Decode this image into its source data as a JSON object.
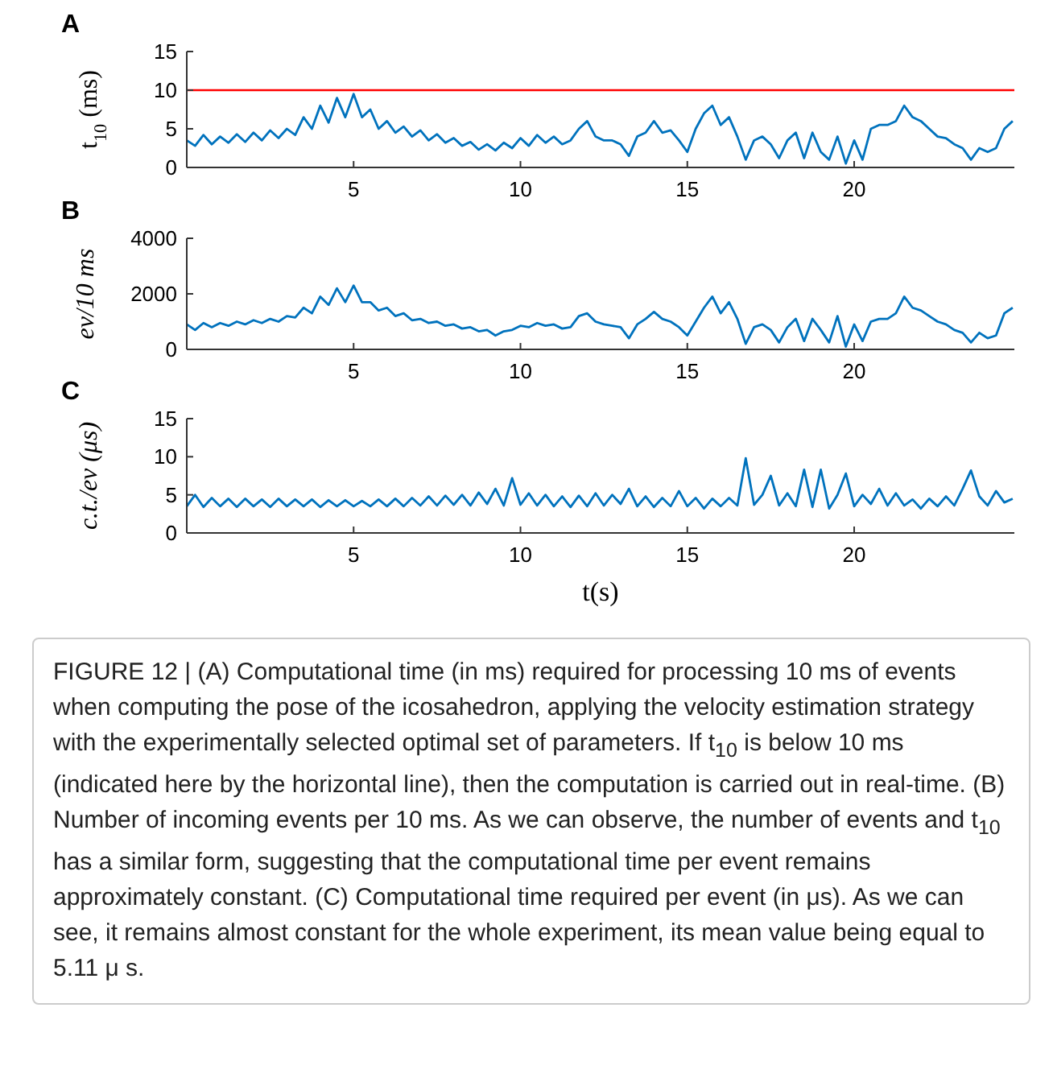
{
  "chart_data": [
    {
      "type": "line",
      "title": "A",
      "ylabel": "t$_{10}$ (ms)",
      "xlim": [
        0,
        24.8
      ],
      "xticks": [
        5,
        10,
        15,
        20
      ],
      "ylim": [
        0,
        15
      ],
      "yticks": [
        0,
        5,
        10,
        15
      ],
      "ref_lines": [
        {
          "axis": "y",
          "value": 10,
          "color": "#ff0000"
        }
      ],
      "x": [
        0,
        0.25,
        0.5,
        0.75,
        1,
        1.25,
        1.5,
        1.75,
        2,
        2.25,
        2.5,
        2.75,
        3,
        3.25,
        3.5,
        3.75,
        4,
        4.25,
        4.5,
        4.75,
        5,
        5.25,
        5.5,
        5.75,
        6,
        6.25,
        6.5,
        6.75,
        7,
        7.25,
        7.5,
        7.75,
        8,
        8.25,
        8.5,
        8.75,
        9,
        9.25,
        9.5,
        9.75,
        10,
        10.25,
        10.5,
        10.75,
        11,
        11.25,
        11.5,
        11.75,
        12,
        12.25,
        12.5,
        12.75,
        13,
        13.25,
        13.5,
        13.75,
        14,
        14.25,
        14.5,
        14.75,
        15,
        15.25,
        15.5,
        15.75,
        16,
        16.25,
        16.5,
        16.75,
        17,
        17.25,
        17.5,
        17.75,
        18,
        18.25,
        18.5,
        18.75,
        19,
        19.25,
        19.5,
        19.75,
        20,
        20.25,
        20.5,
        20.75,
        21,
        21.25,
        21.5,
        21.75,
        22,
        22.25,
        22.5,
        22.75,
        23,
        23.25,
        23.5,
        23.75,
        24,
        24.25,
        24.5,
        24.75
      ],
      "series": [
        {
          "color": "#0072bd",
          "values": [
            3.5,
            2.8,
            4.2,
            3,
            4,
            3.2,
            4.3,
            3.3,
            4.5,
            3.5,
            4.8,
            3.8,
            5,
            4.2,
            6.5,
            5,
            8,
            5.8,
            9,
            6.5,
            9.5,
            6.5,
            7.5,
            5,
            6,
            4.5,
            5.3,
            4,
            4.8,
            3.5,
            4.3,
            3.2,
            3.8,
            2.8,
            3.3,
            2.3,
            3,
            2.2,
            3.2,
            2.5,
            3.8,
            2.8,
            4.2,
            3.2,
            4,
            3,
            3.5,
            5,
            6,
            4,
            3.5,
            3.5,
            3,
            1.5,
            4,
            4.5,
            6,
            4.5,
            4.8,
            3.5,
            2,
            5,
            7,
            8,
            5.5,
            6.5,
            4,
            1,
            3.5,
            4,
            3,
            1.2,
            3.5,
            4.5,
            1.2,
            4.5,
            2,
            1,
            4,
            0.5,
            3.5,
            1,
            5,
            5.5,
            5.5,
            6,
            8,
            6.5,
            6,
            5,
            4,
            3.8,
            3,
            2.5,
            1,
            2.5,
            2,
            2.5,
            5,
            6
          ]
        }
      ]
    },
    {
      "type": "line",
      "title": "B",
      "ylabel": "ev/10 ms",
      "xlim": [
        0,
        24.8
      ],
      "xticks": [
        5,
        10,
        15,
        20
      ],
      "ylim": [
        0,
        4000
      ],
      "yticks": [
        0,
        2000,
        4000
      ],
      "x": [
        0,
        0.25,
        0.5,
        0.75,
        1,
        1.25,
        1.5,
        1.75,
        2,
        2.25,
        2.5,
        2.75,
        3,
        3.25,
        3.5,
        3.75,
        4,
        4.25,
        4.5,
        4.75,
        5,
        5.25,
        5.5,
        5.75,
        6,
        6.25,
        6.5,
        6.75,
        7,
        7.25,
        7.5,
        7.75,
        8,
        8.25,
        8.5,
        8.75,
        9,
        9.25,
        9.5,
        9.75,
        10,
        10.25,
        10.5,
        10.75,
        11,
        11.25,
        11.5,
        11.75,
        12,
        12.25,
        12.5,
        12.75,
        13,
        13.25,
        13.5,
        13.75,
        14,
        14.25,
        14.5,
        14.75,
        15,
        15.25,
        15.5,
        15.75,
        16,
        16.25,
        16.5,
        16.75,
        17,
        17.25,
        17.5,
        17.75,
        18,
        18.25,
        18.5,
        18.75,
        19,
        19.25,
        19.5,
        19.75,
        20,
        20.25,
        20.5,
        20.75,
        21,
        21.25,
        21.5,
        21.75,
        22,
        22.25,
        22.5,
        22.75,
        23,
        23.25,
        23.5,
        23.75,
        24,
        24.25,
        24.5,
        24.75
      ],
      "series": [
        {
          "color": "#0072bd",
          "values": [
            900,
            700,
            950,
            800,
            950,
            850,
            1000,
            900,
            1050,
            950,
            1100,
            1000,
            1200,
            1150,
            1500,
            1300,
            1900,
            1600,
            2200,
            1700,
            2300,
            1700,
            1700,
            1400,
            1500,
            1200,
            1300,
            1050,
            1100,
            950,
            1000,
            850,
            900,
            750,
            800,
            650,
            700,
            500,
            650,
            700,
            850,
            800,
            950,
            850,
            900,
            750,
            800,
            1200,
            1300,
            1000,
            900,
            850,
            800,
            400,
            900,
            1100,
            1350,
            1100,
            1000,
            800,
            500,
            1000,
            1500,
            1900,
            1300,
            1700,
            1100,
            200,
            800,
            900,
            700,
            250,
            800,
            1100,
            300,
            1100,
            700,
            250,
            1200,
            100,
            900,
            300,
            1000,
            1100,
            1100,
            1300,
            1900,
            1500,
            1400,
            1200,
            1000,
            900,
            700,
            600,
            250,
            600,
            400,
            500,
            1300,
            1500
          ]
        }
      ]
    },
    {
      "type": "line",
      "title": "C",
      "ylabel": "c.t./ev (μs)",
      "xlabel": "t(s)",
      "xlim": [
        0,
        24.8
      ],
      "xticks": [
        5,
        10,
        15,
        20
      ],
      "ylim": [
        0,
        15
      ],
      "yticks": [
        0,
        5,
        10,
        15
      ],
      "annotations": [
        "FIGURE 12 | (A) Computational time (in ms) required for processing 10 ms of events when computing the pose of the icosahedron, applying the velocity estimation strategy with the experimentally selected optimal set of parameters. If t$_{10}$ is below 10 ms (indicated here by the horizontal line), then the computation is carried out in real-time. (B) Number of incoming events per 10 ms. As we can observe, the number of events and t$_{10}$ has a similar form, suggesting that the computational time per event remains approximately constant. (C) Computational time required per event (in μs). As we can see, it remains almost constant for the whole experiment, its mean value being equal to 5.11 μ s."
      ],
      "x": [
        0,
        0.25,
        0.5,
        0.75,
        1,
        1.25,
        1.5,
        1.75,
        2,
        2.25,
        2.5,
        2.75,
        3,
        3.25,
        3.5,
        3.75,
        4,
        4.25,
        4.5,
        4.75,
        5,
        5.25,
        5.5,
        5.75,
        6,
        6.25,
        6.5,
        6.75,
        7,
        7.25,
        7.5,
        7.75,
        8,
        8.25,
        8.5,
        8.75,
        9,
        9.25,
        9.5,
        9.75,
        10,
        10.25,
        10.5,
        10.75,
        11,
        11.25,
        11.5,
        11.75,
        12,
        12.25,
        12.5,
        12.75,
        13,
        13.25,
        13.5,
        13.75,
        14,
        14.25,
        14.5,
        14.75,
        15,
        15.25,
        15.5,
        15.75,
        16,
        16.25,
        16.5,
        16.75,
        17,
        17.25,
        17.5,
        17.75,
        18,
        18.25,
        18.5,
        18.75,
        19,
        19.25,
        19.5,
        19.75,
        20,
        20.25,
        20.5,
        20.75,
        21,
        21.25,
        21.5,
        21.75,
        22,
        22.25,
        22.5,
        22.75,
        23,
        23.25,
        23.5,
        23.75,
        24,
        24.25,
        24.5,
        24.75
      ],
      "series": [
        {
          "color": "#0072bd",
          "values": [
            3.5,
            5,
            3.4,
            4.6,
            3.5,
            4.5,
            3.4,
            4.5,
            3.5,
            4.4,
            3.4,
            4.5,
            3.5,
            4.4,
            3.5,
            4.4,
            3.4,
            4.3,
            3.5,
            4.3,
            3.5,
            4.2,
            3.5,
            4.4,
            3.5,
            4.5,
            3.5,
            4.6,
            3.6,
            4.8,
            3.6,
            4.9,
            3.7,
            5,
            3.6,
            5.3,
            3.8,
            5.8,
            3.6,
            7.2,
            3.7,
            5.2,
            3.6,
            5,
            3.5,
            4.8,
            3.4,
            4.9,
            3.5,
            5.2,
            3.6,
            5,
            3.8,
            5.8,
            3.5,
            4.8,
            3.4,
            4.6,
            3.5,
            5.5,
            3.5,
            4.6,
            3.2,
            4.5,
            3.5,
            4.6,
            3.6,
            9.8,
            3.7,
            5,
            7.5,
            3.6,
            5.2,
            3.5,
            8.3,
            3.4,
            8.3,
            3.2,
            5,
            7.8,
            3.5,
            5,
            3.8,
            5.8,
            3.6,
            5.2,
            3.6,
            4.4,
            3.2,
            4.5,
            3.5,
            4.8,
            3.6,
            5.8,
            8.2,
            4.8,
            3.6,
            5.5,
            4,
            4.5
          ]
        }
      ]
    }
  ]
}
